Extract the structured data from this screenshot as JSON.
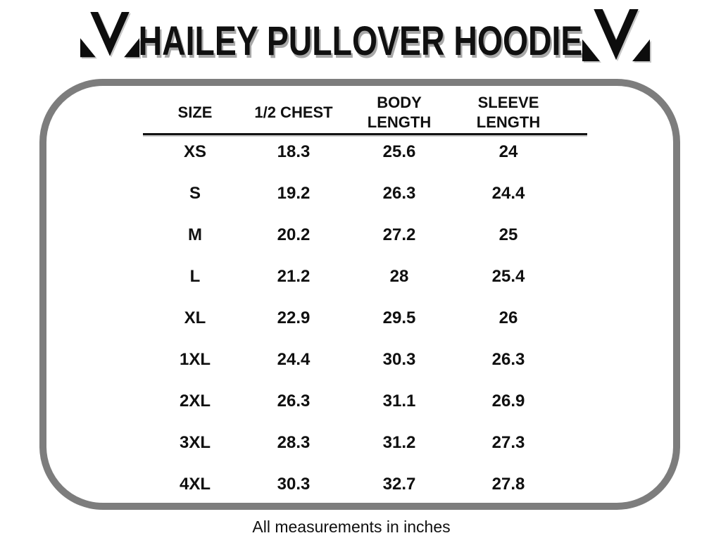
{
  "header": {
    "title": "HAILEY PULLOVER HOODIE",
    "logo": "m-checkmark-monogram"
  },
  "table": {
    "columns": [
      "SIZE",
      "1/2 CHEST",
      "BODY\nLENGTH",
      "SLEEVE\nLENGTH"
    ],
    "rows": [
      {
        "size": "XS",
        "values": [
          "18.3",
          "25.6",
          "24"
        ]
      },
      {
        "size": "S",
        "values": [
          "19.2",
          "26.3",
          "24.4"
        ]
      },
      {
        "size": "M",
        "values": [
          "20.2",
          "27.2",
          "25"
        ]
      },
      {
        "size": "L",
        "values": [
          "21.2",
          "28",
          "25.4"
        ]
      },
      {
        "size": "XL",
        "values": [
          "22.9",
          "29.5",
          "26"
        ]
      },
      {
        "size": "1XL",
        "values": [
          "24.4",
          "30.3",
          "26.3"
        ]
      },
      {
        "size": "2XL",
        "values": [
          "26.3",
          "31.1",
          "26.9"
        ]
      },
      {
        "size": "3XL",
        "values": [
          "28.3",
          "31.2",
          "27.3"
        ]
      },
      {
        "size": "4XL",
        "values": [
          "30.3",
          "32.7",
          "27.8"
        ]
      }
    ]
  },
  "footer": {
    "note": "All measurements in inches"
  },
  "colors": {
    "panel_border": "#7d7d7d",
    "text": "#101010",
    "title_shadow": "#a8a8a8"
  }
}
